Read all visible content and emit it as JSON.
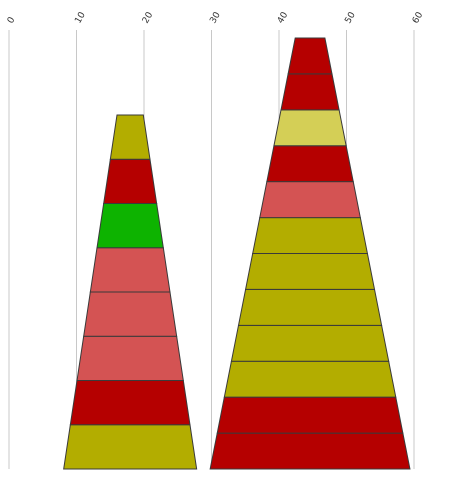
{
  "chart_data": {
    "type": "bar",
    "variant": "stacked-trapezoid-pyramids",
    "title": "",
    "xlabel": "",
    "ylabel": "",
    "xlim": [
      0,
      60
    ],
    "x_ticks": [
      "0",
      "10",
      "20",
      "30",
      "40",
      "50",
      "60"
    ],
    "grid": true,
    "legend": "none",
    "colors": {
      "olive": "#b3ad00",
      "red": "#b50000",
      "green": "#0db300",
      "salmon": "#d45353",
      "khaki": "#d4cf56",
      "outline": "#3a3a3a",
      "gridline": "#c8c8c8"
    },
    "stacks": [
      {
        "x_min": 8.1,
        "x_max": 27.8,
        "top_width": 3.9,
        "segments": [
          {
            "color": "olive"
          },
          {
            "color": "red"
          },
          {
            "color": "salmon"
          },
          {
            "color": "salmon"
          },
          {
            "color": "salmon"
          },
          {
            "color": "green"
          },
          {
            "color": "red"
          },
          {
            "color": "olive"
          }
        ]
      },
      {
        "x_min": 29.8,
        "x_max": 59.4,
        "top_width": 4.4,
        "segments": [
          {
            "color": "red"
          },
          {
            "color": "red"
          },
          {
            "color": "olive"
          },
          {
            "color": "olive"
          },
          {
            "color": "olive"
          },
          {
            "color": "olive"
          },
          {
            "color": "olive"
          },
          {
            "color": "salmon"
          },
          {
            "color": "red"
          },
          {
            "color": "khaki"
          },
          {
            "color": "red"
          },
          {
            "color": "red"
          }
        ]
      }
    ]
  }
}
